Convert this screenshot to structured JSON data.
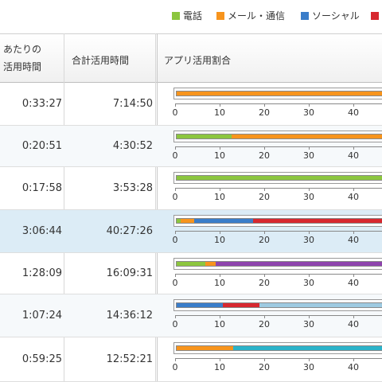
{
  "legend": [
    {
      "label": "電話",
      "color": "#8cc63f"
    },
    {
      "label": "メール・通信",
      "color": "#f7941d"
    },
    {
      "label": "ソーシャル",
      "color": "#3a7dc9"
    },
    {
      "label": "",
      "color": "#d7282f"
    }
  ],
  "header": {
    "col_avg_line1": "あたりの",
    "col_avg_line2": "活用時間",
    "col_total": "合計活用時間",
    "col_ratio": "アプリ活用割合"
  },
  "axis_ticks": [
    "0",
    "10",
    "20",
    "30",
    "40"
  ],
  "rows": [
    {
      "avg": "0:33:27",
      "total": "7:14:50",
      "segments": [
        {
          "from": 0,
          "to": 100,
          "color": "#f7941d"
        }
      ]
    },
    {
      "avg": "0:20:51",
      "total": "4:30:52",
      "segments": [
        {
          "from": 0,
          "to": 25,
          "color": "#8cc63f"
        },
        {
          "from": 25,
          "to": 100,
          "color": "#f7941d"
        }
      ]
    },
    {
      "avg": "0:17:58",
      "total": "3:53:28",
      "segments": [
        {
          "from": 0,
          "to": 100,
          "color": "#8cc63f"
        }
      ]
    },
    {
      "avg": "3:06:44",
      "total": "40:27:26",
      "segments": [
        {
          "from": 0,
          "to": 2,
          "color": "#8cc63f"
        },
        {
          "from": 2,
          "to": 8,
          "color": "#f7941d"
        },
        {
          "from": 8,
          "to": 35,
          "color": "#3a7dc9"
        },
        {
          "from": 35,
          "to": 100,
          "color": "#d7282f"
        }
      ]
    },
    {
      "avg": "1:28:09",
      "total": "16:09:31",
      "segments": [
        {
          "from": 0,
          "to": 13,
          "color": "#8cc63f"
        },
        {
          "from": 13,
          "to": 18,
          "color": "#f7941d"
        },
        {
          "from": 18,
          "to": 100,
          "color": "#8e44ad"
        }
      ]
    },
    {
      "avg": "1:07:24",
      "total": "14:36:12",
      "segments": [
        {
          "from": 0,
          "to": 21,
          "color": "#3a7dc9"
        },
        {
          "from": 21,
          "to": 38,
          "color": "#d7282f"
        },
        {
          "from": 38,
          "to": 100,
          "color": "#9ecae1"
        }
      ]
    },
    {
      "avg": "0:59:25",
      "total": "12:52:21",
      "segments": [
        {
          "from": 0,
          "to": 26,
          "color": "#f7941d"
        },
        {
          "from": 26,
          "to": 100,
          "color": "#2bb3c9"
        }
      ]
    }
  ]
}
